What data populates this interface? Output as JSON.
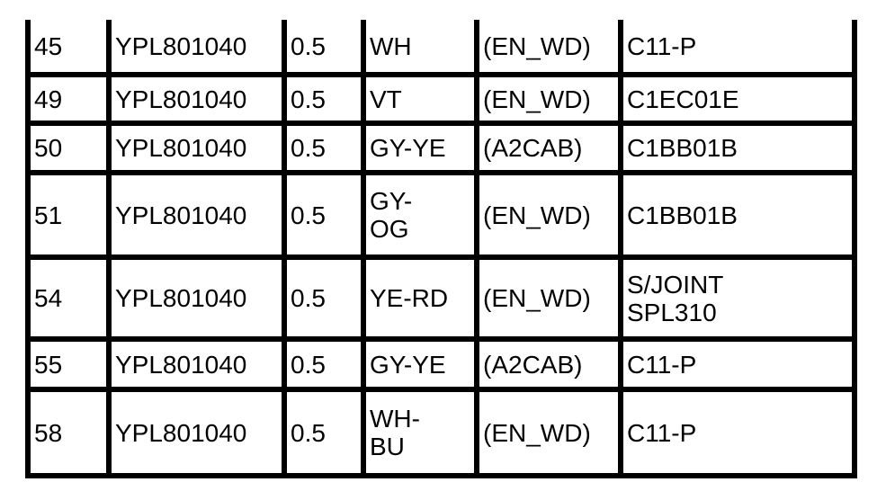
{
  "table": {
    "rows": [
      [
        "45",
        "YPL801040",
        "0.5",
        "WH",
        "(EN_WD)",
        "C11-P"
      ],
      [
        "49",
        "YPL801040",
        "0.5",
        "VT",
        "(EN_WD)",
        "C1EC01E"
      ],
      [
        "50",
        "YPL801040",
        "0.5",
        "GY-YE",
        "(A2CAB)",
        "C1BB01B"
      ],
      [
        "51",
        "YPL801040",
        "0.5",
        "GY-\nOG",
        "(EN_WD)",
        "C1BB01B"
      ],
      [
        "54",
        "YPL801040",
        "0.5",
        "YE-RD",
        "(EN_WD)",
        "S/JOINT\nSPL310"
      ],
      [
        "55",
        "YPL801040",
        "0.5",
        "GY-YE",
        "(A2CAB)",
        "C11-P"
      ],
      [
        "58",
        "YPL801040",
        "0.5",
        "WH-\nBU",
        "(EN_WD)",
        "C11-P"
      ]
    ]
  }
}
